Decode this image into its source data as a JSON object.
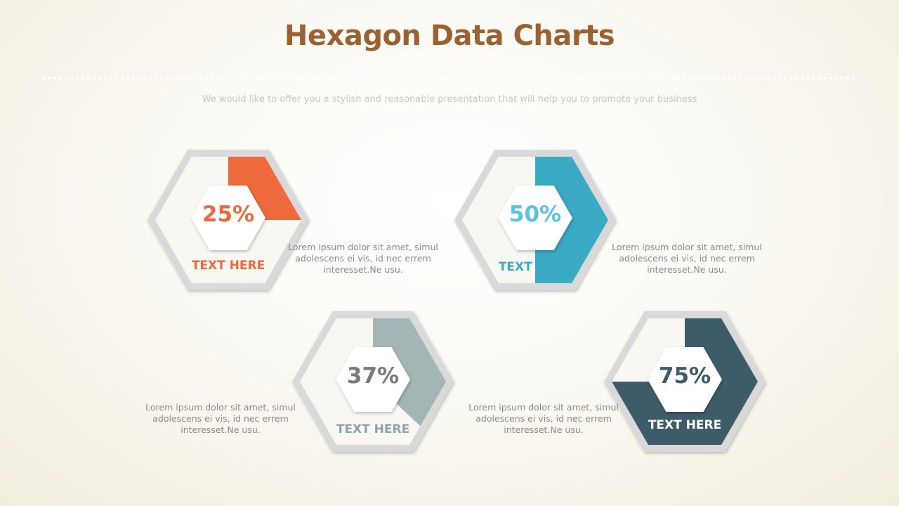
{
  "title": "Hexagon Data Charts",
  "subtitle": "We would like to offer you a stylish and reasonable presentation that will help you to promote your business",
  "charts": [
    {
      "percent": 25,
      "percent_label": "25%",
      "label": "TEXT HERE",
      "fill_color": "#ec6a3c",
      "percent_color": "#ec6a3c",
      "label_color": "#ec6a3c",
      "description": "Lorem ipsum dolor sit amet, simul adolescens ei vis, id nec errem interesset.Ne usu."
    },
    {
      "percent": 50,
      "percent_label": "50%",
      "label": "TEXT HERE",
      "fill_color": "#3aa9c4",
      "percent_color": "#5cc4da",
      "label_color": "#3aa9c4",
      "description": "Lorem ipsum dolor sit amet, simul adolescens ei vis, id nec errem interesset.Ne usu."
    },
    {
      "percent": 37,
      "percent_label": "37%",
      "label": "TEXT HERE",
      "fill_color": "#a3b5b5",
      "percent_color": "#7a7a7a",
      "label_color": "#8fa3a8",
      "description": "Lorem ipsum dolor sit amet, simul adolescens ei vis, id nec errem interesset.Ne usu."
    },
    {
      "percent": 75,
      "percent_label": "75%",
      "label": "TEXT HERE",
      "fill_color": "#3e5c67",
      "percent_color": "#3e5c67",
      "label_color": "#ffffff",
      "description": "Lorem ipsum dolor sit amet, simul adolescens ei vis, id nec errem interesset.Ne usu."
    }
  ]
}
